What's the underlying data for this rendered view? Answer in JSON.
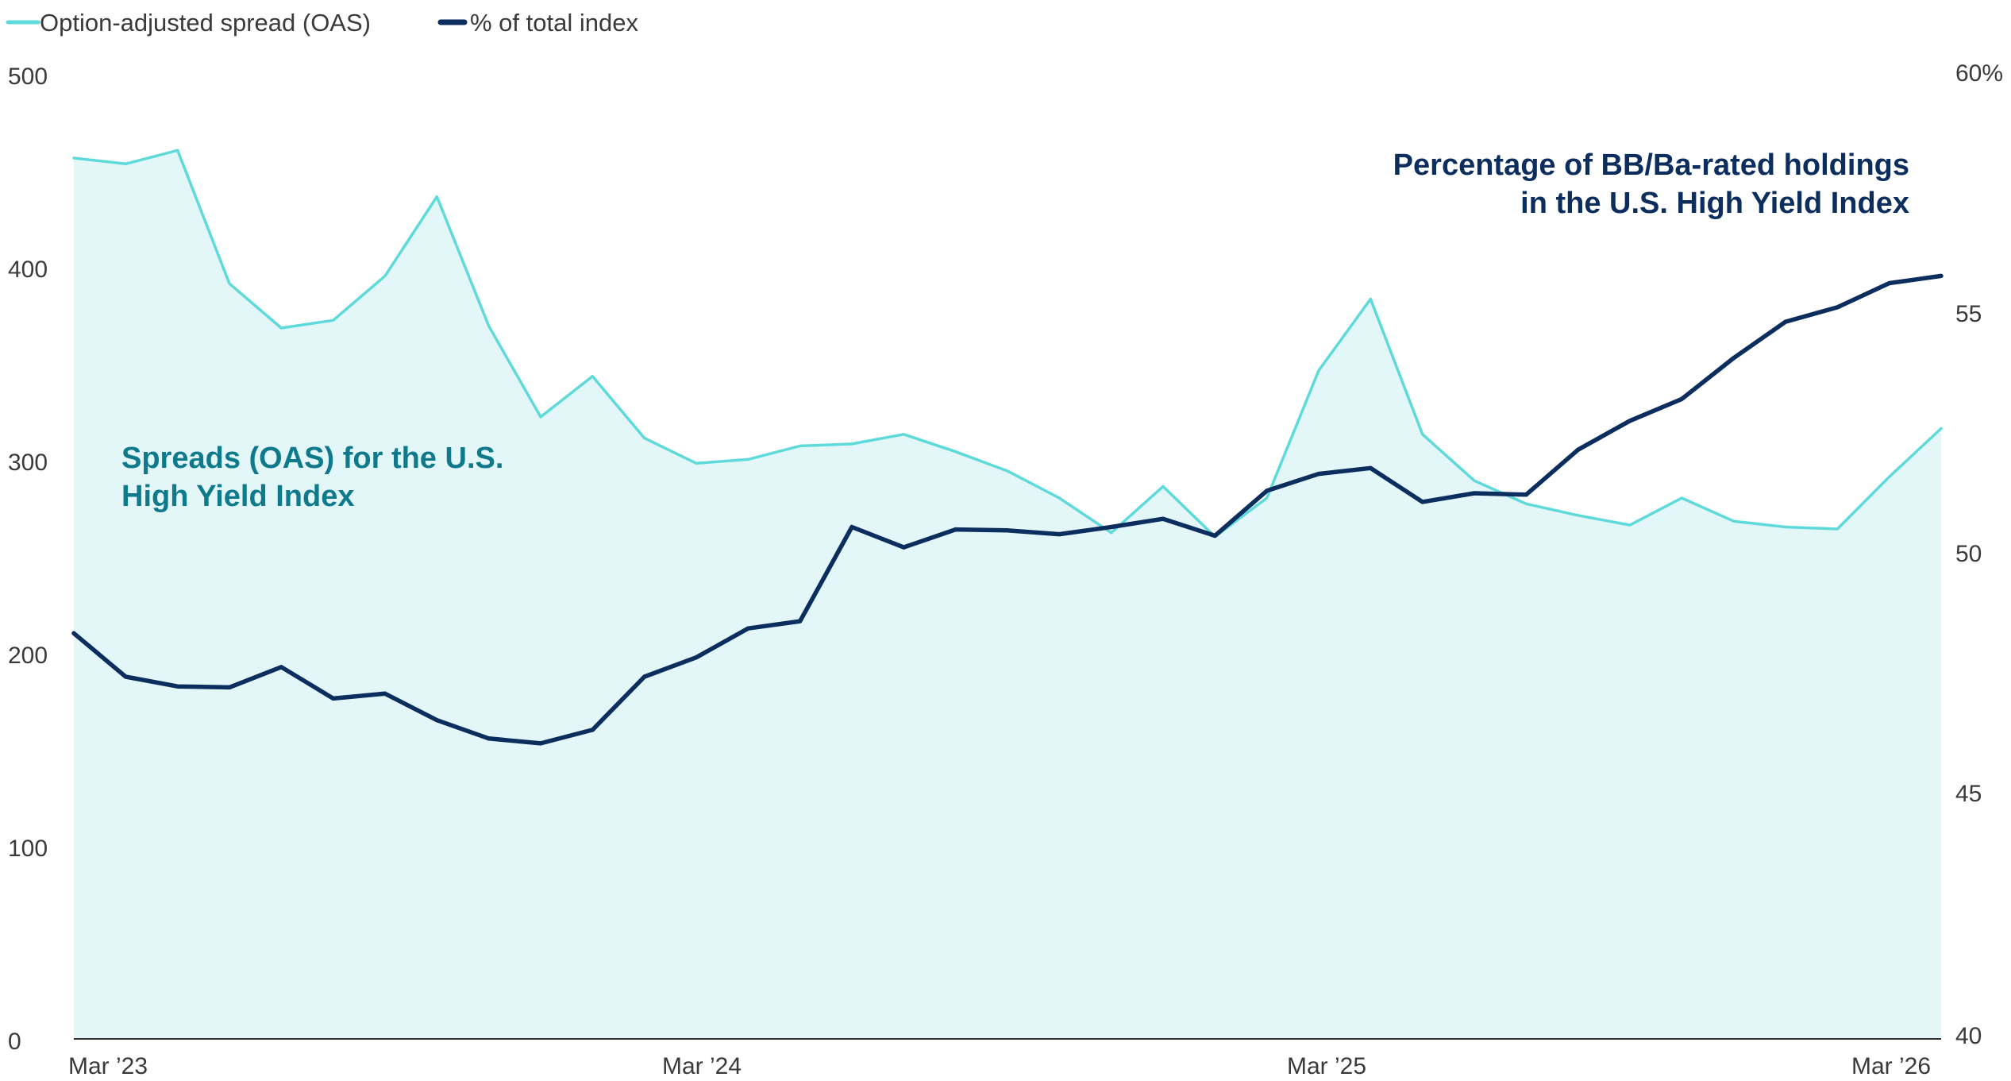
{
  "colors": {
    "oas_line": "#5fdadb",
    "oas_fill": "#e3f7f8",
    "pct_line": "#0c2e5f",
    "oas_annotation": "#0f7a8c",
    "pct_annotation": "#0c2e5f",
    "axis_text": "#3a3a3a",
    "baseline": "#333333"
  },
  "legend": {
    "items": [
      {
        "label": "Option-adjusted spread (OAS)",
        "color_key": "oas_line"
      },
      {
        "label": "% of total index",
        "color_key": "pct_line"
      }
    ],
    "placement": "top-left"
  },
  "annotations": {
    "oas": [
      "Spreads (OAS) for the U.S.",
      "High Yield Index"
    ],
    "pct": [
      "Percentage of BB/Ba-rated holdings",
      "in the U.S. High Yield Index"
    ]
  },
  "chart_data": {
    "type": "line",
    "x_ticks": [
      "Mar ’23",
      "Mar ’24",
      "Mar ’25",
      "Mar ’26"
    ],
    "left_axis": {
      "ticks": [
        "0",
        "100",
        "200",
        "300",
        "400",
        "500"
      ],
      "range": [
        0,
        500
      ]
    },
    "right_axis": {
      "ticks": [
        "40",
        "45",
        "50",
        "55",
        "60%"
      ],
      "range": [
        40,
        60
      ]
    },
    "months": [
      "2023-03",
      "2023-04",
      "2023-05",
      "2023-06",
      "2023-07",
      "2023-08",
      "2023-09",
      "2023-10",
      "2023-11",
      "2023-12",
      "2024-01",
      "2024-02",
      "2024-03",
      "2024-04",
      "2024-05",
      "2024-06",
      "2024-07",
      "2024-08",
      "2024-09",
      "2024-10",
      "2024-11",
      "2024-12",
      "2025-01",
      "2025-02",
      "2025-03",
      "2025-04",
      "2025-05",
      "2025-06",
      "2025-07",
      "2025-08",
      "2025-09",
      "2025-10",
      "2025-11",
      "2025-12",
      "2026-01",
      "2026-02",
      "2026-03"
    ],
    "series": [
      {
        "name": "Option-adjusted spread (OAS)",
        "axis": "left",
        "style": "area",
        "values": [
          456,
          453,
          460,
          391,
          368,
          372,
          395,
          436,
          369,
          322,
          343,
          311,
          298,
          300,
          307,
          308,
          313,
          304,
          294,
          280,
          262,
          286,
          260,
          280,
          346,
          383,
          313,
          289,
          277,
          271,
          266,
          280,
          268,
          265,
          264,
          291,
          316
        ]
      },
      {
        "name": "% of total index",
        "axis": "right",
        "style": "line",
        "values": [
          48.4,
          47.5,
          47.3,
          47.28,
          47.7,
          47.05,
          47.15,
          46.6,
          46.22,
          46.12,
          46.4,
          47.5,
          47.9,
          48.5,
          48.65,
          50.6,
          50.18,
          50.55,
          50.53,
          50.45,
          50.6,
          50.77,
          50.42,
          51.35,
          51.7,
          51.82,
          51.12,
          51.3,
          51.27,
          52.2,
          52.8,
          53.25,
          54.1,
          54.85,
          55.15,
          55.65,
          55.8
        ]
      }
    ],
    "grid": false,
    "title": ""
  }
}
